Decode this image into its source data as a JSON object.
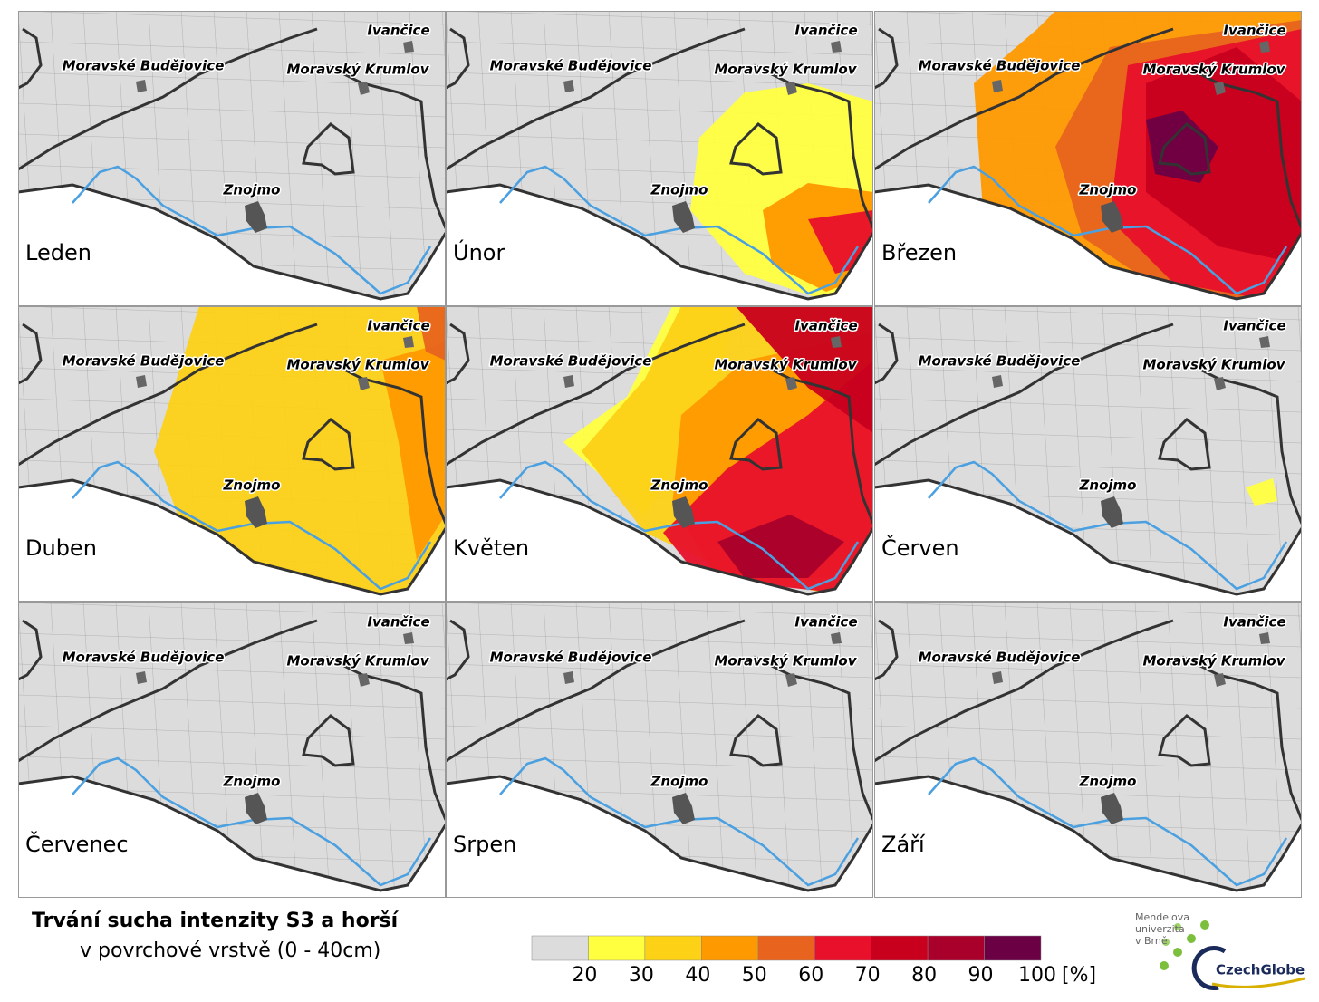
{
  "title": "Trvání sucha intenzity S3 a horší",
  "subtitle": "v povrchové vrstvě (0 - 40cm)",
  "towns": [
    "Ivančice",
    "Moravské Budějovice",
    "Moravský Krumlov",
    "Znojmo"
  ],
  "panels": [
    {
      "month": "Leden"
    },
    {
      "month": "Únor"
    },
    {
      "month": "Březen"
    },
    {
      "month": "Duben"
    },
    {
      "month": "Květen"
    },
    {
      "month": "Červen"
    },
    {
      "month": "Červenec"
    },
    {
      "month": "Srpen"
    },
    {
      "month": "Září"
    }
  ],
  "legend": {
    "colors": [
      "#dcdcdc",
      "#ffff40",
      "#fcd116",
      "#ff9900",
      "#e8641e",
      "#e8102a",
      "#c8001e",
      "#a8002a",
      "#6b0045"
    ],
    "ticks": [
      20,
      30,
      40,
      50,
      60,
      70,
      80,
      90,
      100
    ],
    "unit": "[%]"
  },
  "logos": {
    "mendelu": [
      "Mendelova",
      "univerzita",
      "v Brně"
    ],
    "czechglobe": "CzechGlobe"
  }
}
